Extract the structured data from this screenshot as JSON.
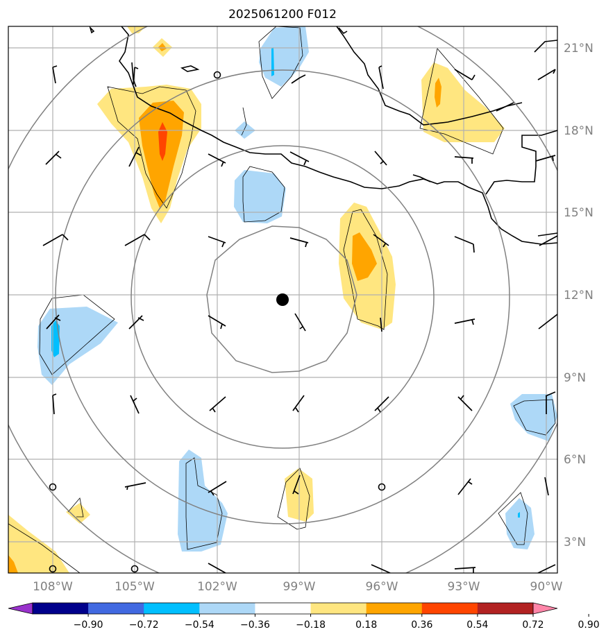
{
  "title": "2025061200 F012",
  "lat_labels": [
    "21°N",
    "18°N",
    "15°N",
    "12°N",
    "9°N",
    "6°N",
    "3°N"
  ],
  "lon_labels": [
    "108°W",
    "105°W",
    "102°W",
    "99°W",
    "96°W",
    "93°W",
    "90°W"
  ],
  "colorbar": {
    "ticks": [
      "−0.90",
      "−0.72",
      "−0.54",
      "−0.36",
      "−0.18",
      "0.18",
      "0.36",
      "0.54",
      "0.72",
      "0.90"
    ],
    "colors": [
      "#9932cc",
      "#00008b",
      "#4169e1",
      "#00bfff",
      "#add8f7",
      "#ffffff",
      "#ffe680",
      "#ffa500",
      "#ff4500",
      "#b22222",
      "#ff85a8"
    ]
  },
  "map": {
    "center_marker": "storm-center-dot",
    "ring_color": "#808080",
    "grid_color": "#b0b0b0",
    "coast_color": "#000000"
  }
}
